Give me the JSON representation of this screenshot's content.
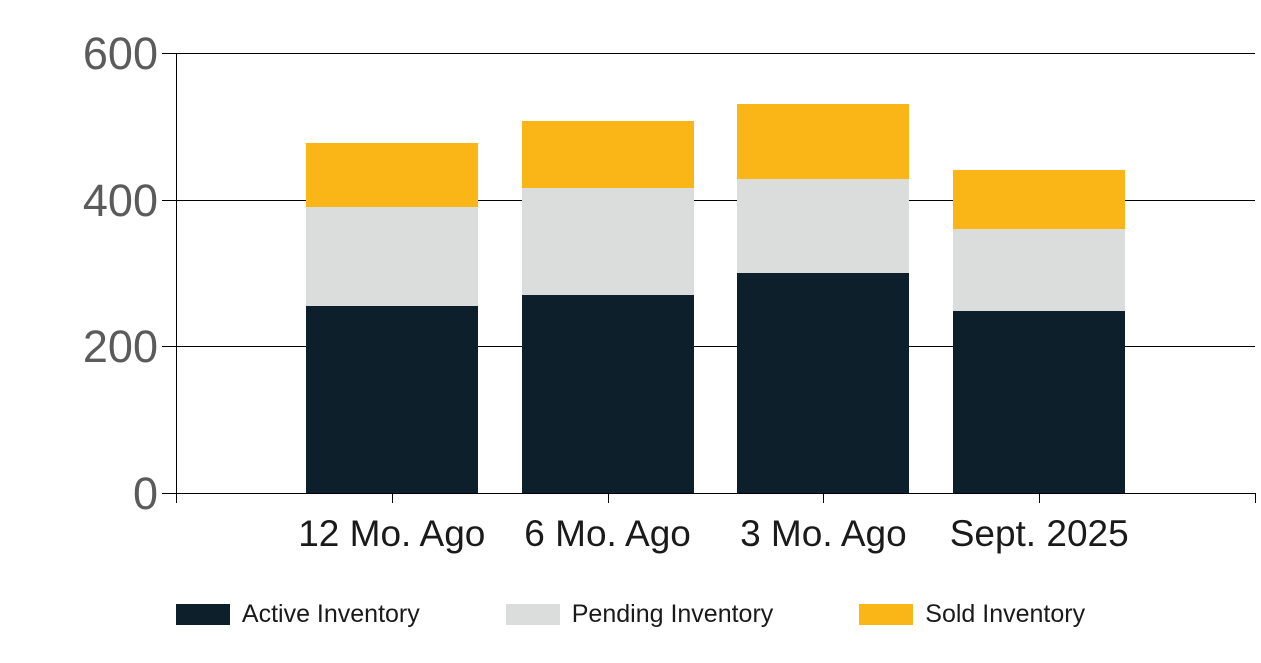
{
  "chart_data": {
    "type": "bar",
    "stacked": true,
    "title": "",
    "xlabel": "",
    "ylabel": "",
    "categories": [
      "12 Mo. Ago",
      "6 Mo. Ago",
      "3 Mo. Ago",
      "Sept. 2025"
    ],
    "series": [
      {
        "name": "Active Inventory",
        "color": "#0C1F2B",
        "values": [
          255,
          270,
          300,
          248
        ]
      },
      {
        "name": "Pending Inventory",
        "color": "#DBDCDC",
        "values": [
          135,
          146,
          128,
          112
        ]
      },
      {
        "name": "Sold Inventory",
        "color": "#F9B616",
        "values": [
          87,
          91,
          102,
          80
        ]
      }
    ],
    "stack_totals": [
      477,
      507,
      530,
      440
    ],
    "ylim": [
      0,
      600
    ],
    "yticks": [
      0,
      200,
      400,
      600
    ],
    "grid": true,
    "legend_position": "bottom"
  },
  "styles": {
    "background": "#FFFFFF",
    "gridline_color": "#000000",
    "y_label_color": "#5B5B5B",
    "x_label_color": "#1A1A1A",
    "legend_text_color": "#1A1A1A"
  }
}
